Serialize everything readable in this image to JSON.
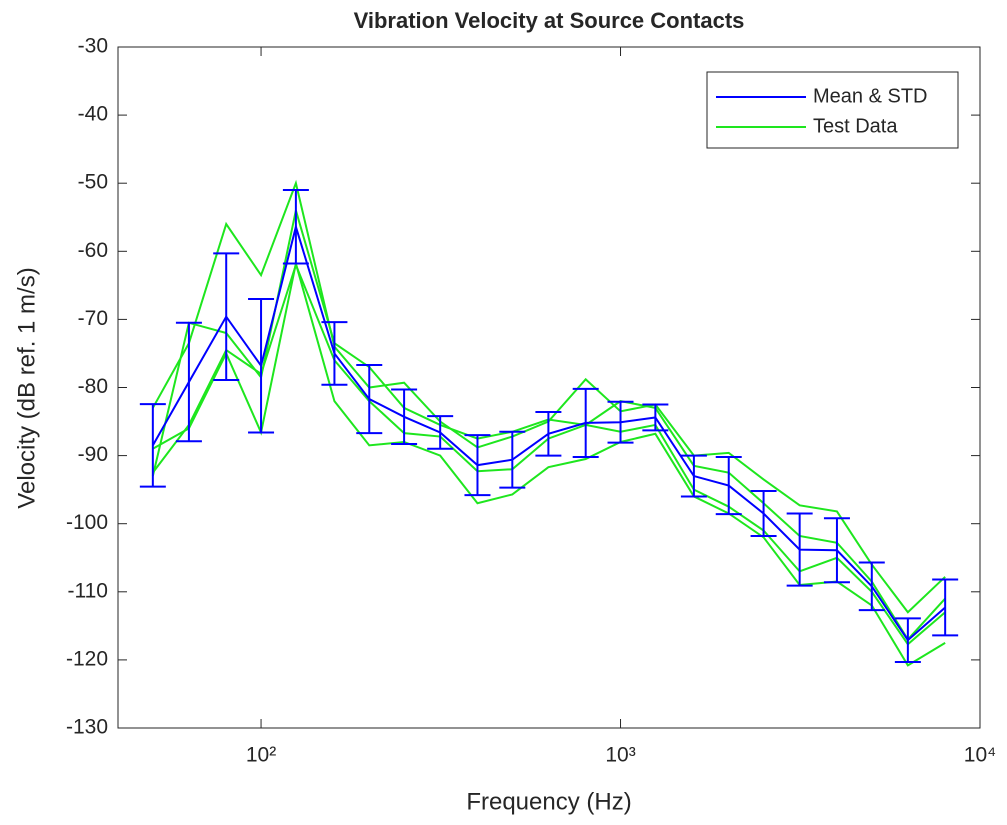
{
  "chart_data": {
    "type": "line",
    "title": "Vibration Velocity at Source Contacts",
    "x_label": "Frequency (Hz)",
    "y_label": "Velocity (dB ref. 1 m/s)",
    "x": [
      50,
      63,
      80,
      100,
      125,
      160,
      200,
      250,
      315,
      400,
      500,
      630,
      800,
      1000,
      1250,
      1600,
      2000,
      2500,
      3150,
      4000,
      5000,
      6300,
      8000
    ],
    "x_scale": "log",
    "xlim": [
      40,
      10000
    ],
    "xticks": [
      {
        "value": 100,
        "label": "10²"
      },
      {
        "value": 1000,
        "label": "10³"
      },
      {
        "value": 10000,
        "label": "10⁴"
      }
    ],
    "ylim": [
      -130,
      -30
    ],
    "yticks": [
      -130,
      -120,
      -110,
      -100,
      -90,
      -80,
      -70,
      -60,
      -50,
      -40,
      -30
    ],
    "legend": "top-right",
    "series": [
      {
        "name": "Mean & STD",
        "color": "#0000ff",
        "values": [
          -88.5,
          -79.2,
          -69.6,
          -76.8,
          -56.4,
          -75,
          -81.7,
          -84.3,
          -86.6,
          -91.4,
          -90.6,
          -86.8,
          -85.2,
          -85.1,
          -84.4,
          -93,
          -94.4,
          -98.5,
          -103.8,
          -103.9,
          -109.2,
          -117.1,
          -112.3
        ],
        "errors": [
          6.05,
          8.7,
          9.3,
          9.8,
          5.4,
          4.6,
          5.0,
          4.0,
          2.4,
          4.4,
          4.1,
          3.2,
          5.0,
          3.0,
          1.9,
          3.0,
          4.2,
          3.3,
          5.3,
          4.7,
          3.5,
          3.2,
          4.1
        ]
      },
      {
        "name": "Test Data",
        "color": "#1ee61e",
        "runs": [
          [
            -83,
            -73.5,
            -56,
            -63.5,
            -50,
            -74,
            -80,
            -79.3,
            -85,
            -88.8,
            -87.2,
            -85,
            -78.8,
            -83.5,
            -82.5,
            -90,
            -89.6,
            -93.5,
            -97.3,
            -98.2,
            -106,
            -113,
            -107.8
          ],
          [
            -93,
            -70.5,
            -72,
            -78.5,
            -54,
            -73.5,
            -77,
            -83,
            -85.5,
            -87.5,
            -86.5,
            -84.7,
            -85.5,
            -82,
            -83,
            -91.5,
            -92.5,
            -97,
            -101.8,
            -102.8,
            -108.5,
            -117,
            -111
          ],
          [
            -92.5,
            -85.5,
            -74.5,
            -78,
            -62,
            -76,
            -82,
            -86.7,
            -87.2,
            -92.3,
            -92,
            -87.5,
            -85.5,
            -86.5,
            -85.5,
            -95,
            -97.5,
            -101,
            -107,
            -105,
            -110,
            -117.7,
            -113
          ],
          [
            -89,
            -86,
            -75,
            -86.6,
            -61.8,
            -82,
            -88.5,
            -88,
            -90,
            -97,
            -95.7,
            -91.7,
            -90.5,
            -88,
            -86.8,
            -96,
            -98.5,
            -102,
            -109,
            -108.5,
            -112,
            -120.8,
            -117.5
          ]
        ]
      }
    ]
  }
}
